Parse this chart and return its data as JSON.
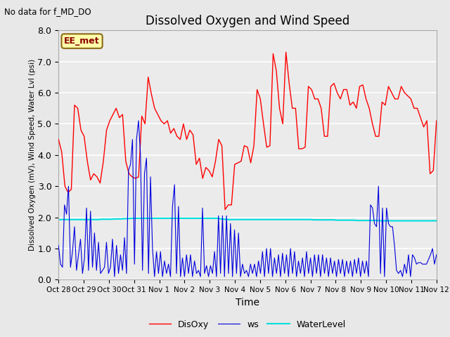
{
  "title": "Dissolved Oxygen and Wind Speed",
  "ylabel": "Dissolved Oxygen (mV), Wind Speed, Water Lvl (psi)",
  "xlabel": "Time",
  "top_left_text": "No data for f_MD_DO",
  "box_label": "EE_met",
  "ylim": [
    0.0,
    8.0
  ],
  "yticks": [
    0.0,
    1.0,
    2.0,
    3.0,
    4.0,
    5.0,
    6.0,
    7.0,
    8.0
  ],
  "xtick_labels": [
    "Oct 28",
    "Oct 29",
    "Oct 30",
    "Oct 31",
    "Nov 1",
    "Nov 2",
    "Nov 3",
    "Nov 4",
    "Nov 5",
    "Nov 6",
    "Nov 7",
    "Nov 8",
    "Nov 9",
    "Nov 10",
    "Nov 11",
    "Nov 12"
  ],
  "disoxy_color": "#ff0000",
  "ws_color": "#0000dd",
  "waterlevel_color": "#00dddd",
  "legend_labels": [
    "DisOxy",
    "ws",
    "WaterLevel"
  ],
  "background_color": "#e8e8e8",
  "plot_bg_color": "#ebebeb",
  "grid_color": "#ffffff",
  "disoxy_data": [
    4.5,
    4.1,
    3.0,
    2.8,
    2.9,
    5.6,
    5.5,
    4.8,
    4.6,
    3.8,
    3.2,
    3.4,
    3.3,
    3.1,
    3.8,
    4.8,
    5.1,
    5.3,
    5.5,
    5.2,
    5.3,
    3.8,
    3.4,
    3.3,
    3.25,
    3.3,
    5.25,
    5.0,
    6.5,
    5.95,
    5.5,
    5.3,
    5.1,
    5.0,
    5.1,
    4.7,
    4.85,
    4.6,
    4.5,
    5.0,
    4.5,
    4.8,
    4.65,
    3.7,
    3.9,
    3.25,
    3.6,
    3.5,
    3.3,
    3.8,
    4.5,
    4.3,
    2.25,
    2.4,
    2.4,
    3.7,
    3.75,
    3.8,
    4.3,
    4.25,
    3.75,
    4.3,
    6.1,
    5.8,
    5.0,
    4.25,
    4.3,
    7.25,
    6.7,
    5.5,
    5.0,
    7.3,
    6.3,
    5.5,
    5.5,
    4.2,
    4.2,
    4.25,
    6.2,
    6.1,
    5.8,
    5.8,
    5.5,
    4.6,
    4.6,
    6.2,
    6.3,
    6.0,
    5.8,
    6.1,
    6.1,
    5.6,
    5.7,
    5.5,
    6.2,
    6.25,
    5.8,
    5.5,
    5.0,
    4.6,
    4.6,
    5.7,
    5.6,
    6.2,
    6.0,
    5.8,
    5.8,
    6.2,
    6.0,
    5.9,
    5.8,
    5.5,
    5.5,
    5.2,
    4.9,
    5.1,
    3.4,
    3.5,
    5.1
  ],
  "ws_data": [
    1.1,
    0.5,
    0.4,
    2.4,
    2.1,
    3.0,
    0.4,
    0.9,
    1.7,
    0.3,
    0.8,
    1.3,
    0.2,
    0.7,
    2.3,
    0.3,
    2.2,
    0.4,
    1.5,
    0.3,
    1.2,
    0.2,
    0.3,
    0.4,
    1.2,
    0.2,
    0.4,
    1.3,
    0.1,
    1.1,
    0.2,
    0.8,
    0.3,
    1.35,
    0.2,
    3.5,
    3.7,
    4.5,
    0.5,
    4.5,
    5.1,
    4.0,
    0.3,
    3.4,
    3.9,
    0.2,
    3.3,
    1.0,
    0.1,
    0.9,
    0.2,
    0.9,
    0.1,
    0.6,
    0.2,
    0.5,
    0.1,
    2.35,
    3.05,
    0.2,
    2.35,
    0.1,
    0.7,
    0.1,
    0.8,
    0.2,
    0.8,
    0.1,
    0.6,
    0.2,
    0.3,
    0.1,
    2.3,
    0.2,
    0.45,
    0.1,
    0.45,
    0.2,
    0.9,
    0.1,
    2.05,
    0.2,
    2.05,
    0.1,
    2.05,
    0.2,
    1.8,
    0.1,
    1.6,
    0.2,
    1.5,
    0.1,
    0.5,
    0.2,
    0.3,
    0.1,
    0.5,
    0.2,
    0.5,
    0.1,
    0.6,
    0.2,
    0.9,
    0.1,
    1.0,
    0.2,
    1.0,
    0.1,
    0.7,
    0.2,
    0.8,
    0.1,
    0.85,
    0.2,
    0.8,
    0.1,
    1.0,
    0.2,
    0.9,
    0.1,
    0.6,
    0.2,
    0.7,
    0.1,
    0.9,
    0.2,
    0.7,
    0.1,
    0.8,
    0.2,
    0.8,
    0.1,
    0.8,
    0.2,
    0.7,
    0.1,
    0.7,
    0.2,
    0.6,
    0.1,
    0.65,
    0.2,
    0.65,
    0.1,
    0.6,
    0.2,
    0.6,
    0.1,
    0.65,
    0.2,
    0.7,
    0.1,
    0.6,
    0.2,
    0.6,
    0.1,
    2.4,
    2.3,
    1.8,
    1.7,
    3.0,
    0.2,
    2.3,
    0.1,
    2.3,
    1.8,
    1.7,
    1.7,
    1.1,
    0.3,
    0.2,
    0.3,
    0.1,
    0.5,
    0.2,
    0.8,
    0.1,
    0.8,
    0.7,
    0.5,
    0.55,
    0.55,
    0.5,
    0.5,
    0.5,
    0.65,
    0.8,
    1.0,
    0.5,
    0.8
  ],
  "waterlevel_data": [
    1.93,
    1.93,
    1.93,
    1.93,
    1.93,
    1.93,
    1.93,
    1.93,
    1.93,
    1.93,
    1.93,
    1.93,
    1.93,
    1.94,
    1.94,
    1.94,
    1.94,
    1.95,
    1.95,
    1.95,
    1.96,
    1.96,
    1.97,
    1.97,
    1.97,
    1.97,
    1.97,
    1.97,
    1.97,
    1.97,
    1.97,
    1.97,
    1.97,
    1.97,
    1.97,
    1.97,
    1.97,
    1.97,
    1.97,
    1.97,
    1.97,
    1.97,
    1.97,
    1.97,
    1.97,
    1.97,
    1.97,
    1.97,
    1.97,
    1.95,
    1.94,
    1.93,
    1.93,
    1.93,
    1.93,
    1.93,
    1.93,
    1.93,
    1.93,
    1.93,
    1.93,
    1.93,
    1.93,
    1.93,
    1.93,
    1.93,
    1.93,
    1.93,
    1.93,
    1.93,
    1.93,
    1.93,
    1.93,
    1.93,
    1.93,
    1.93,
    1.93,
    1.92,
    1.92,
    1.92,
    1.92,
    1.92,
    1.92,
    1.92,
    1.91,
    1.91,
    1.91,
    1.91,
    1.91,
    1.91,
    1.9,
    1.9,
    1.9,
    1.9,
    1.9,
    1.9,
    1.9,
    1.89,
    1.89,
    1.89,
    1.89,
    1.89,
    1.89,
    1.89,
    1.89,
    1.89,
    1.89,
    1.89,
    1.89,
    1.89,
    1.89,
    1.89,
    1.89,
    1.89,
    1.89
  ]
}
